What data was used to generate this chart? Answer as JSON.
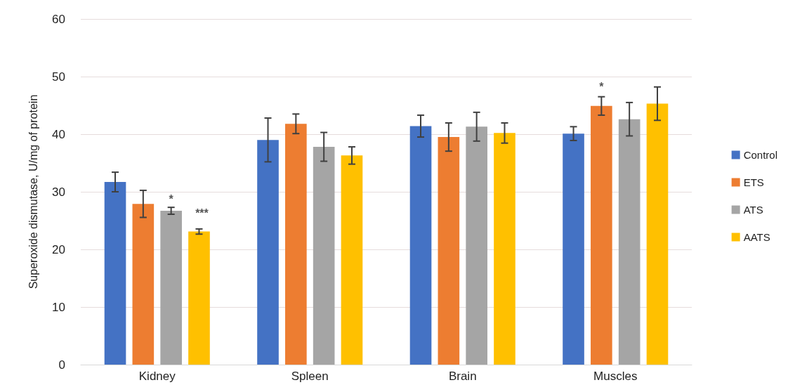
{
  "chart_data": {
    "type": "bar",
    "ylabel": "Superoxide dismutase, U/mg of protein",
    "categories": [
      "Kidney",
      "Spleen",
      "Brain",
      "Muscles"
    ],
    "series": [
      {
        "name": "Control",
        "color": "#4472c4",
        "values": [
          31.7,
          39.0,
          41.4,
          40.1
        ],
        "errors": [
          1.7,
          3.8,
          1.9,
          1.2
        ]
      },
      {
        "name": "ETS",
        "color": "#ed7d31",
        "values": [
          27.9,
          41.8,
          39.5,
          44.9
        ],
        "errors": [
          2.35,
          1.7,
          2.45,
          1.6
        ]
      },
      {
        "name": "ATS",
        "color": "#a5a5a5",
        "values": [
          26.7,
          37.8,
          41.3,
          42.6
        ],
        "errors": [
          0.6,
          2.5,
          2.5,
          2.9
        ]
      },
      {
        "name": "AATS",
        "color": "#ffc000",
        "values": [
          23.1,
          36.3,
          40.2,
          45.3
        ],
        "errors": [
          0.45,
          1.5,
          1.75,
          2.9
        ]
      }
    ],
    "ylim": [
      0,
      60
    ],
    "yticks": [
      0,
      10,
      20,
      30,
      40,
      50,
      60
    ],
    "grid": "y",
    "legend": "right",
    "annotations": [
      "*",
      "***",
      "*"
    ]
  }
}
